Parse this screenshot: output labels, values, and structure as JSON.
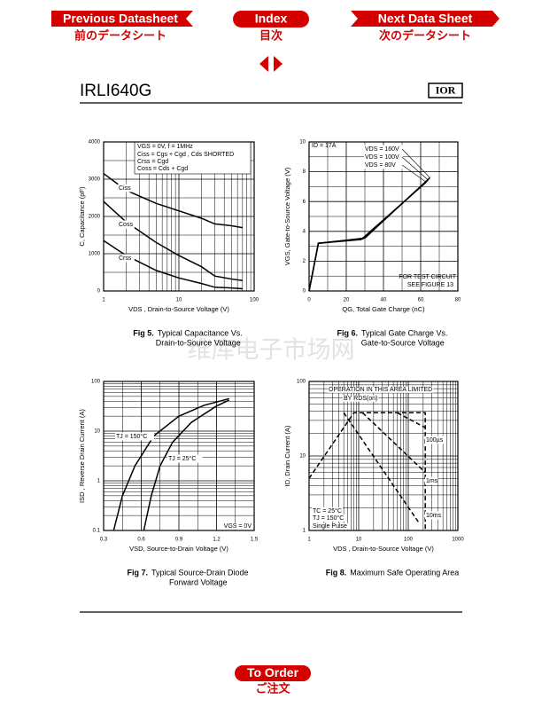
{
  "nav": {
    "previous": {
      "label": "Previous Datasheet",
      "label_jp": "前のデータシート"
    },
    "index": {
      "label": "Index",
      "label_jp": "目次"
    },
    "next": {
      "label": "Next Data Sheet",
      "label_jp": "次のデータシート"
    },
    "order": {
      "label": "To Order",
      "label_jp": "ご注文"
    }
  },
  "header": {
    "title": "IRLI640G",
    "logo": "IOR"
  },
  "watermark": "维库电子市场网",
  "chart_data": [
    {
      "type": "line",
      "caption": {
        "label": "Fig 5.",
        "text": [
          "Typical Capacitance Vs.",
          "Drain-to-Source Voltage"
        ]
      },
      "x_label": "VDS , Drain-to-Source Voltage (V)",
      "y_label": "C, Capacitance (pF)",
      "xlog": true,
      "xlim": [
        1,
        100
      ],
      "xticks": [
        1,
        10,
        100
      ],
      "ylim": [
        0,
        4000
      ],
      "yticks": [
        0,
        1000,
        2000,
        3000,
        4000
      ],
      "grid": true,
      "annotations": [
        "VGS = 0V,      f = 1MHz",
        "Ciss = Cgs + Cgd ,  Cds  SHORTED",
        "Crss = Cgd",
        "Coss = Cds + Cgd"
      ],
      "x": [
        1,
        2,
        5,
        10,
        20,
        30,
        50,
        70
      ],
      "series": [
        {
          "name": "Ciss",
          "color": "#000000",
          "style": "solid",
          "values": [
            3150,
            2700,
            2350,
            2150,
            1950,
            1800,
            1750,
            1700
          ]
        },
        {
          "name": "Coss",
          "color": "#000000",
          "style": "solid",
          "values": [
            2400,
            1850,
            1300,
            950,
            650,
            400,
            320,
            280
          ]
        },
        {
          "name": "Crss",
          "color": "#000000",
          "style": "solid",
          "values": [
            1350,
            950,
            550,
            350,
            200,
            100,
            80,
            60
          ]
        }
      ]
    },
    {
      "type": "line",
      "caption": {
        "label": "Fig 6.",
        "text": [
          "Typical Gate Charge Vs.",
          "Gate-to-Source Voltage"
        ]
      },
      "x_label": "QG, Total Gate Charge (nC)",
      "y_label": "VGS, Gate-to-Source Voltage (V)",
      "xlog": false,
      "xlim": [
        0,
        80
      ],
      "xticks": [
        0,
        20,
        40,
        60,
        80
      ],
      "ylim": [
        0,
        10
      ],
      "yticks": [
        0,
        2,
        4,
        6,
        8,
        10
      ],
      "grid": true,
      "annotations": [
        "ID = 17A",
        "FOR TEST CIRCUIT",
        "SEE FIGURE 13"
      ],
      "x": [
        0,
        5,
        29,
        64
      ],
      "series": [
        {
          "name": "VDS = 160V",
          "color": "#000000",
          "style": "solid",
          "x": [
            0,
            5,
            30,
            65
          ],
          "values": [
            0,
            3.2,
            3.55,
            7.6
          ]
        },
        {
          "name": "VDS = 100V",
          "color": "#000000",
          "style": "solid",
          "x": [
            0,
            5,
            29,
            64
          ],
          "values": [
            0,
            3.2,
            3.5,
            7.45
          ]
        },
        {
          "name": "VDS =  80V",
          "color": "#000000",
          "style": "solid",
          "x": [
            0,
            5,
            28,
            63
          ],
          "values": [
            0,
            3.2,
            3.45,
            7.3
          ]
        }
      ]
    },
    {
      "type": "line",
      "caption": {
        "label": "Fig 7.",
        "text": [
          "Typical Source-Drain Diode",
          "Forward Voltage"
        ]
      },
      "x_label": "VSD, Source-to-Drain Voltage (V)",
      "y_label": "ISD , Reverse Drain Current (A)",
      "xlog": false,
      "xlim": [
        0.3,
        1.5
      ],
      "xticks": [
        0.3,
        0.6,
        0.9,
        1.2,
        1.5
      ],
      "ylog": true,
      "ylim": [
        0.1,
        100
      ],
      "yticks": [
        0.1,
        1,
        10,
        100
      ],
      "grid": true,
      "annotations": [
        "VGS = 0V"
      ],
      "series": [
        {
          "name": "TJ = 150°C",
          "color": "#000000",
          "style": "solid",
          "x": [
            0.38,
            0.45,
            0.55,
            0.7,
            0.9,
            1.1,
            1.3
          ],
          "values": [
            0.1,
            0.5,
            2,
            8,
            20,
            33,
            45
          ]
        },
        {
          "name": "TJ = 25°C",
          "color": "#000000",
          "style": "solid",
          "x": [
            0.62,
            0.68,
            0.75,
            0.85,
            1.0,
            1.2,
            1.3
          ],
          "values": [
            0.1,
            0.5,
            2,
            6,
            15,
            32,
            42
          ]
        }
      ]
    },
    {
      "type": "line",
      "caption": {
        "label": "Fig 8.",
        "text": [
          "Maximum Safe Operating Area"
        ]
      },
      "x_label": "VDS , Drain-to-Source Voltage (V)",
      "y_label": "ID, Drain Current (A)",
      "xlog": true,
      "xlim": [
        1,
        1000
      ],
      "xticks": [
        1,
        10,
        100,
        1000
      ],
      "ylog": true,
      "ylim": [
        1,
        100
      ],
      "yticks": [
        1,
        10,
        100
      ],
      "grid": true,
      "annotations": [
        "OPERATION IN THIS AREA LIMITED",
        "BY RDS(on)",
        "TC  = 25°C",
        "TJ  = 150°C",
        "Single Pulse"
      ],
      "series": [
        {
          "color": "#000000",
          "style": "dashed",
          "x": [
            1,
            8,
            220,
            220
          ],
          "values": [
            5,
            38,
            38,
            1
          ]
        },
        {
          "name": "100µs",
          "color": "#000000",
          "style": "dashed",
          "x": [
            60,
            220
          ],
          "values": [
            38,
            24
          ]
        },
        {
          "name": "1ms",
          "color": "#000000",
          "style": "dashed",
          "x": [
            12,
            220
          ],
          "values": [
            38,
            6
          ]
        },
        {
          "name": "10ms",
          "color": "#000000",
          "style": "dashed",
          "x": [
            5,
            160
          ],
          "values": [
            38,
            1.3
          ]
        }
      ]
    }
  ]
}
